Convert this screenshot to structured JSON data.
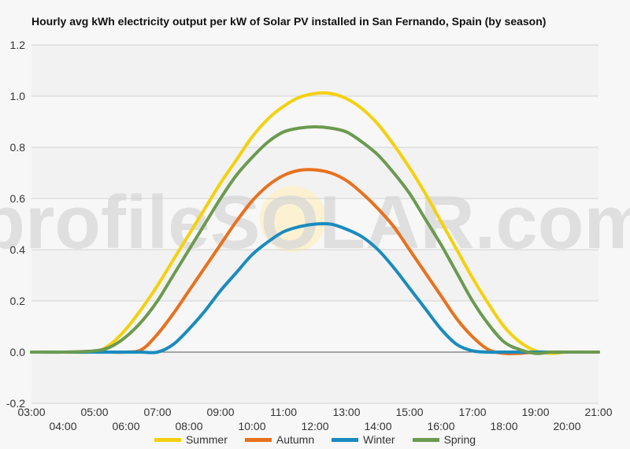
{
  "chart_data": {
    "type": "line",
    "title": "Hourly avg kWh electricity output per kW of Solar PV installed in San Fernando, Spain (by season)",
    "watermark": "profileSOLAR.com",
    "xlabel": "",
    "ylabel": "",
    "ylim": [
      -0.2,
      1.2
    ],
    "yticks": [
      "-0.2",
      "0.0",
      "0.2",
      "0.4",
      "0.6",
      "0.8",
      "1.0",
      "1.2"
    ],
    "xlim": [
      3,
      21
    ],
    "xticks_top": [
      "03:00",
      "05:00",
      "07:00",
      "09:00",
      "11:00",
      "13:00",
      "15:00",
      "17:00",
      "19:00",
      "21:00"
    ],
    "xticks_bottom": [
      "04:00",
      "06:00",
      "08:00",
      "10:00",
      "12:00",
      "14:00",
      "16:00",
      "18:00",
      "20:00"
    ],
    "x": [
      3,
      4,
      5,
      5.5,
      6,
      6.5,
      7,
      7.5,
      8,
      8.5,
      9,
      9.5,
      10,
      10.5,
      11,
      11.5,
      12,
      12.5,
      13,
      13.5,
      14,
      14.5,
      15,
      15.5,
      16,
      16.5,
      17,
      17.5,
      18,
      18.5,
      19,
      19.5,
      20,
      21
    ],
    "series": [
      {
        "name": "Summer",
        "color": "#f5d00f",
        "values": [
          0,
          0,
          0.002,
          0.03,
          0.09,
          0.17,
          0.26,
          0.36,
          0.46,
          0.56,
          0.66,
          0.75,
          0.84,
          0.91,
          0.96,
          0.995,
          1.01,
          1.01,
          0.99,
          0.95,
          0.89,
          0.81,
          0.72,
          0.62,
          0.51,
          0.4,
          0.29,
          0.19,
          0.1,
          0.04,
          0.005,
          -0.005,
          0,
          0
        ]
      },
      {
        "name": "Autumn",
        "color": "#e8711e",
        "values": [
          0,
          0,
          0,
          0,
          0,
          0.01,
          0.07,
          0.15,
          0.24,
          0.33,
          0.42,
          0.51,
          0.59,
          0.65,
          0.69,
          0.71,
          0.712,
          0.7,
          0.67,
          0.62,
          0.56,
          0.49,
          0.4,
          0.31,
          0.22,
          0.13,
          0.06,
          0.01,
          -0.005,
          -0.005,
          0,
          0,
          0,
          0
        ]
      },
      {
        "name": "Winter",
        "color": "#1a8bbd",
        "values": [
          0,
          0,
          0,
          0,
          0,
          0,
          0,
          0.03,
          0.09,
          0.16,
          0.24,
          0.31,
          0.38,
          0.43,
          0.47,
          0.49,
          0.5,
          0.5,
          0.48,
          0.45,
          0.4,
          0.33,
          0.25,
          0.17,
          0.09,
          0.03,
          0.005,
          0,
          0,
          0,
          0,
          0,
          0,
          0
        ]
      },
      {
        "name": "Spring",
        "color": "#6b9a50",
        "values": [
          0,
          0,
          0.005,
          0.02,
          0.06,
          0.12,
          0.2,
          0.3,
          0.4,
          0.5,
          0.6,
          0.69,
          0.76,
          0.82,
          0.86,
          0.875,
          0.88,
          0.875,
          0.86,
          0.82,
          0.77,
          0.7,
          0.62,
          0.52,
          0.42,
          0.31,
          0.2,
          0.11,
          0.04,
          0.01,
          -0.005,
          0,
          0,
          0
        ]
      }
    ],
    "grid": true,
    "legend": "bottom"
  }
}
